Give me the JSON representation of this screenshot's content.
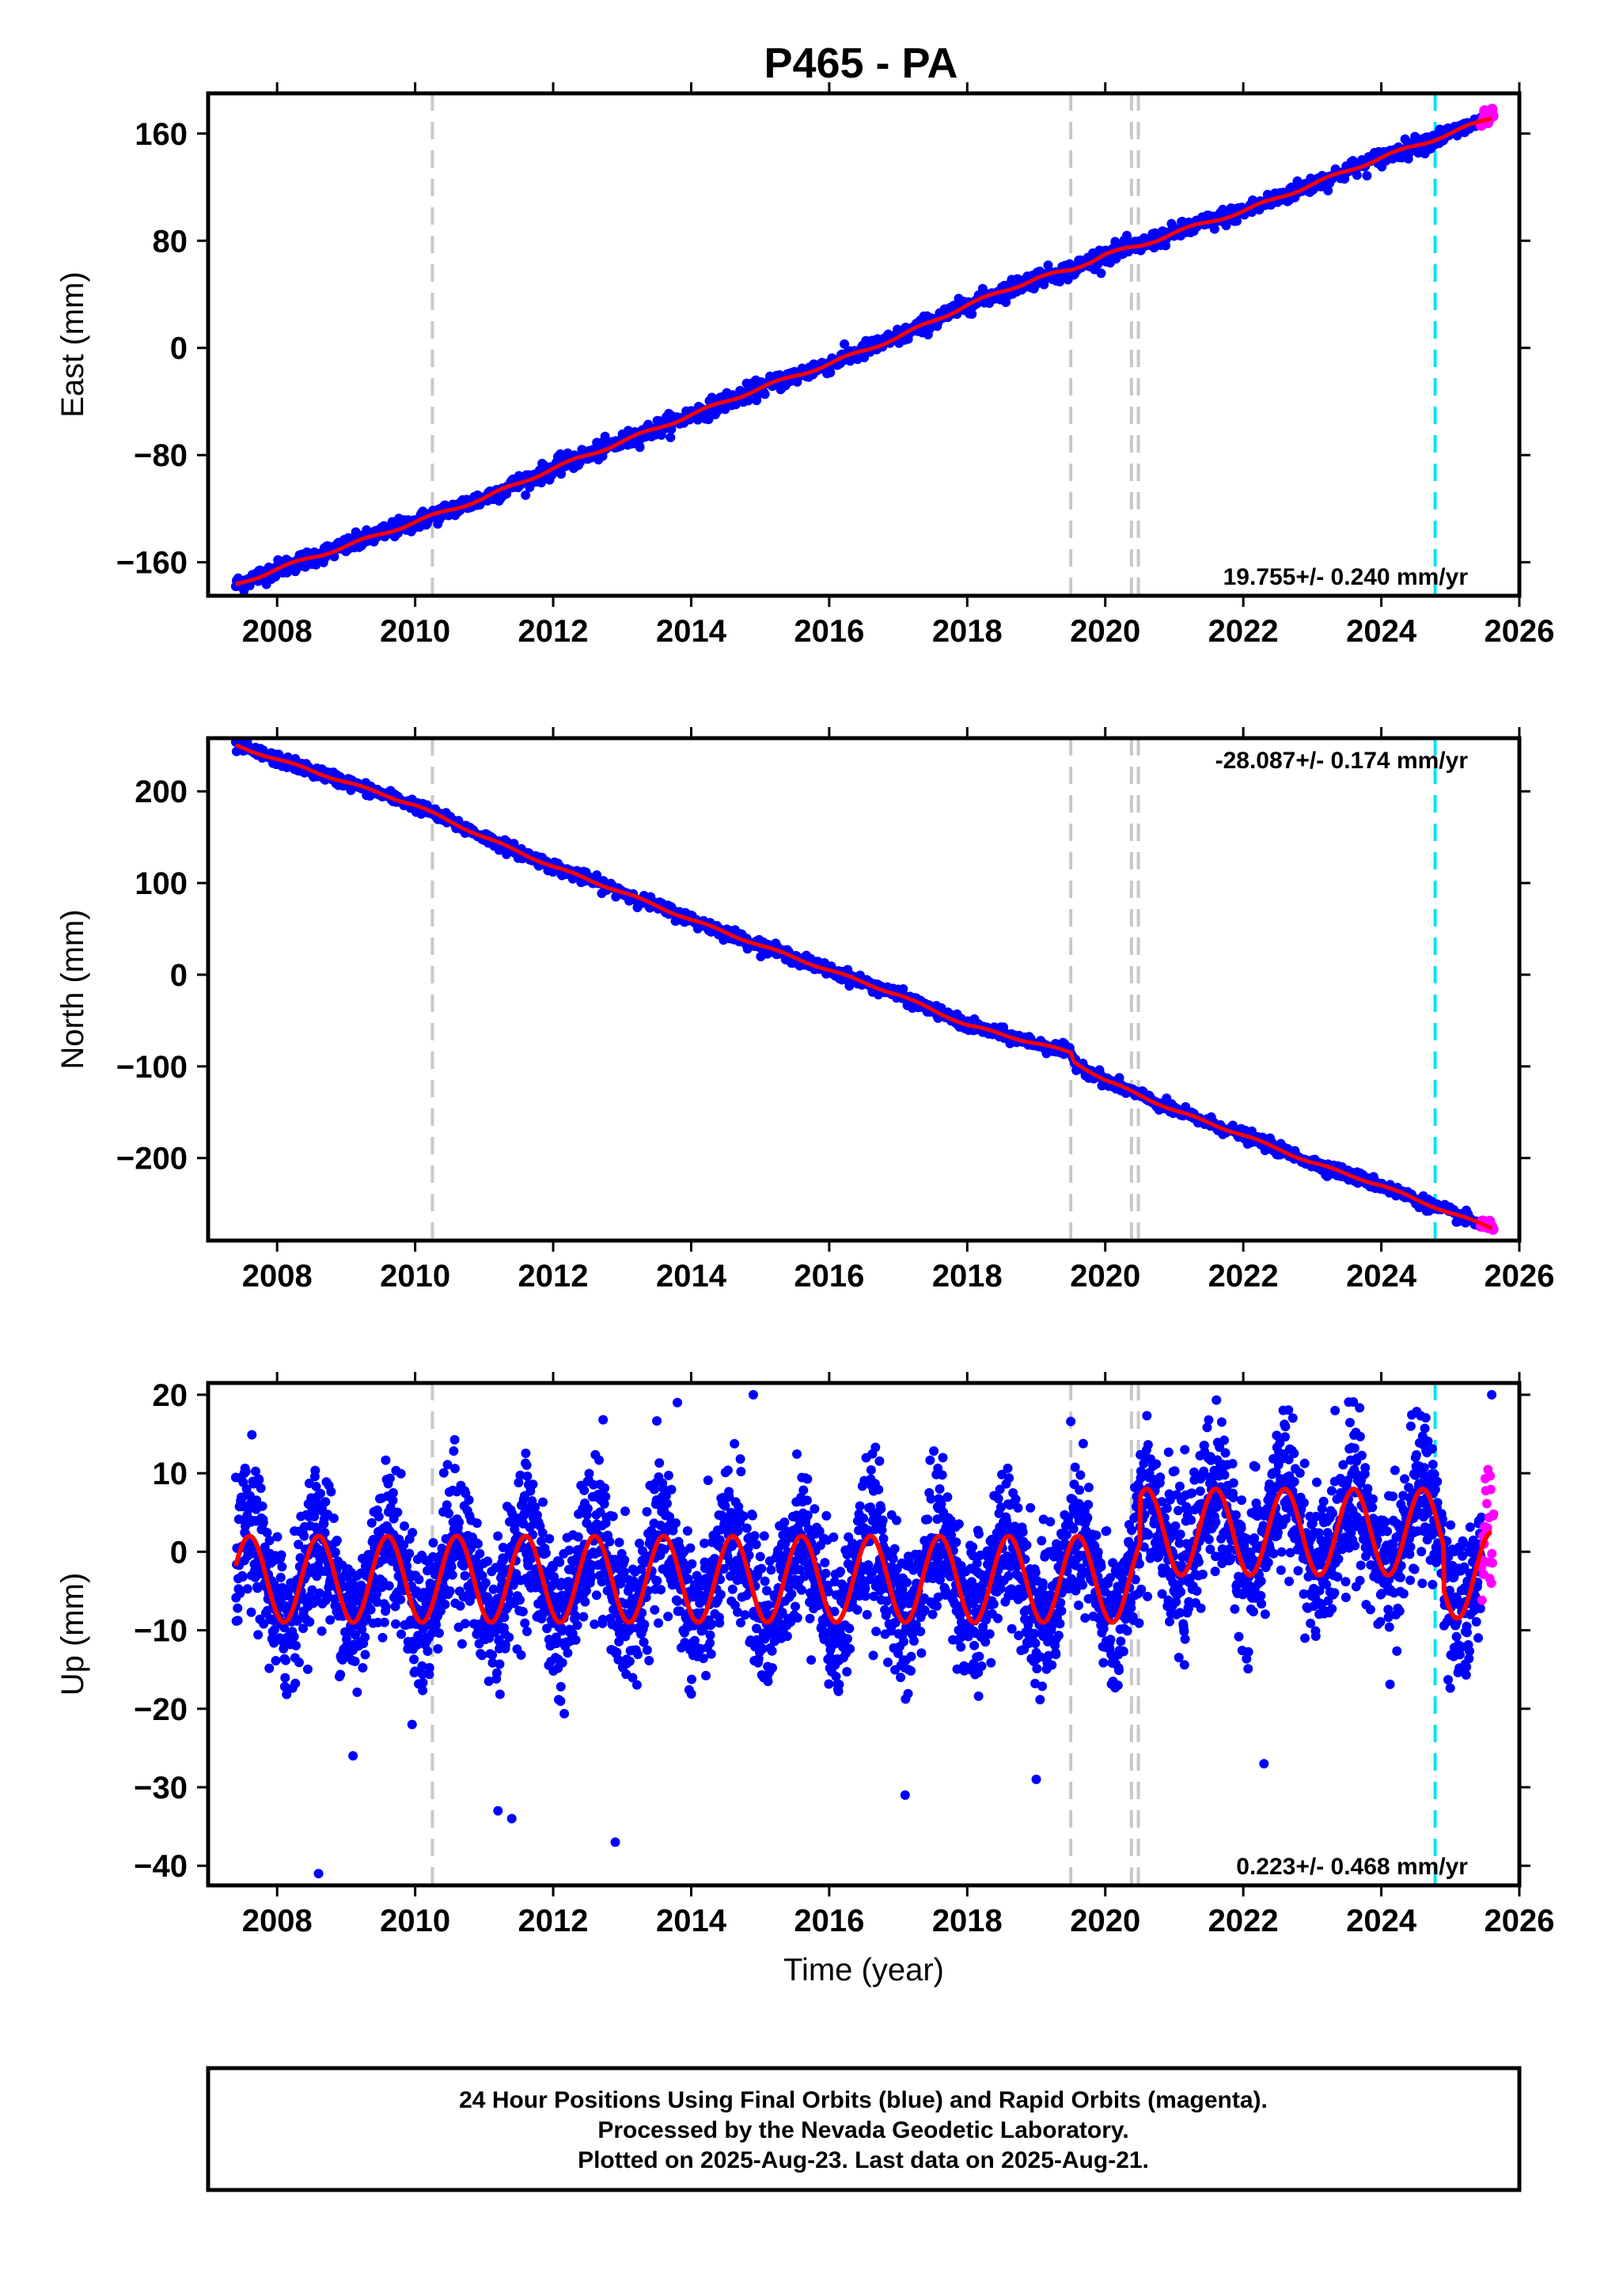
{
  "title": "P465 - PA",
  "colors": {
    "final_orbits": "#0000ff",
    "rapid_orbits": "#ff00ff",
    "model_fit": "#ff0000",
    "equipment_change": "#c8c8c8",
    "earthquake": "#00e5ee"
  },
  "vertical_event_lines": {
    "gray": [
      2010.25,
      2019.5,
      2020.38,
      2020.48
    ],
    "cyan": [
      2024.78
    ]
  },
  "caption": {
    "line1": "24 Hour Positions Using Final Orbits (blue) and Rapid Orbits (magenta).",
    "line2": "Processed by the Nevada Geodetic Laboratory.",
    "line3": "Plotted on 2025-Aug-23. Last data on 2025-Aug-21."
  },
  "chart_data": [
    {
      "type": "scatter",
      "name": "east",
      "ylabel": "East (mm)",
      "xlabel": "",
      "xlim": [
        2007.0,
        2026.0
      ],
      "ylim": [
        -185,
        190
      ],
      "xticks": [
        2008,
        2010,
        2012,
        2014,
        2016,
        2018,
        2020,
        2022,
        2024,
        2026
      ],
      "xtick_labels": [
        "2008",
        "2010",
        "2012",
        "2014",
        "2016",
        "2018",
        "2020",
        "2022",
        "2024",
        "2026"
      ],
      "yticks": [
        160,
        80,
        0,
        -80,
        -160
      ],
      "ytick_labels": [
        "160",
        "80",
        "0",
        "−80",
        "−160"
      ],
      "rate": "19.755+/- 0.240 mm/yr",
      "rate_position": "bottom-right",
      "grid": false,
      "trend": {
        "start": [
          2007.4,
          -177
        ],
        "end": [
          2025.6,
          172
        ]
      },
      "fit_x": [
        2007.4,
        2008.0,
        2009.0,
        2010.0,
        2011.0,
        2012.0,
        2013.0,
        2014.0,
        2015.0,
        2016.0,
        2017.0,
        2018.0,
        2019.0,
        2019.5,
        2020.0,
        2020.5,
        2021.0,
        2022.0,
        2023.0,
        2024.0,
        2025.0,
        2025.6
      ],
      "fit_y": [
        -177,
        -165,
        -148,
        -130,
        -112,
        -90,
        -70,
        -50,
        -30,
        -12,
        8,
        32,
        52,
        58,
        70,
        76,
        86,
        102,
        122,
        142,
        160,
        172
      ]
    },
    {
      "type": "scatter",
      "name": "north",
      "ylabel": "North (mm)",
      "xlabel": "",
      "xlim": [
        2007.0,
        2026.0
      ],
      "ylim": [
        -290,
        258
      ],
      "xticks": [
        2008,
        2010,
        2012,
        2014,
        2016,
        2018,
        2020,
        2022,
        2024,
        2026
      ],
      "xtick_labels": [
        "2008",
        "2010",
        "2012",
        "2014",
        "2016",
        "2018",
        "2020",
        "2022",
        "2024",
        "2026"
      ],
      "yticks": [
        200,
        100,
        0,
        -100,
        -200
      ],
      "ytick_labels": [
        "200",
        "100",
        "0",
        "−100",
        "−200"
      ],
      "rate": "-28.087+/- 0.174 mm/yr",
      "rate_position": "top-right",
      "grid": false,
      "fit_x": [
        2007.4,
        2008.0,
        2009.0,
        2010.0,
        2011.0,
        2012.0,
        2013.0,
        2014.0,
        2015.0,
        2016.0,
        2017.0,
        2018.0,
        2019.0,
        2019.5,
        2019.55,
        2020.0,
        2021.0,
        2022.0,
        2023.0,
        2024.0,
        2025.0,
        2025.6
      ],
      "fit_y": [
        250,
        235,
        210,
        185,
        150,
        118,
        90,
        60,
        32,
        5,
        -22,
        -55,
        -75,
        -85,
        -95,
        -115,
        -148,
        -175,
        -205,
        -230,
        -260,
        -276
      ]
    },
    {
      "type": "scatter",
      "name": "up",
      "ylabel": "Up (mm)",
      "xlabel": "Time (year)",
      "xlim": [
        2007.0,
        2026.0
      ],
      "ylim": [
        -42.5,
        21.5
      ],
      "xticks": [
        2008,
        2010,
        2012,
        2014,
        2016,
        2018,
        2020,
        2022,
        2024,
        2026
      ],
      "xtick_labels": [
        "2008",
        "2010",
        "2012",
        "2014",
        "2016",
        "2018",
        "2020",
        "2022",
        "2024",
        "2026"
      ],
      "yticks": [
        20,
        10,
        0,
        -10,
        -20,
        -30,
        -40
      ],
      "ytick_labels": [
        "20",
        "10",
        "0",
        "−10",
        "−20",
        "−30",
        "−40"
      ],
      "rate": "0.223+/- 0.468 mm/yr",
      "rate_position": "bottom-right",
      "grid": false,
      "seasonal": {
        "amplitude": 5.5,
        "period_years": 1.0,
        "offset_before_2020_5": -3.5,
        "offset_after_2020_5": 2.5,
        "offset_after_2024_9": -3.0
      },
      "outliers_x": [
        2008.6,
        2009.1,
        2011.2,
        2011.4,
        2012.9,
        2013.8,
        2014.9,
        2017.1,
        2019.0,
        2022.3,
        2025.6
      ],
      "outliers_y": [
        -41,
        -26,
        -33,
        -34,
        -37,
        19,
        20,
        -31,
        -29,
        -27,
        20
      ]
    }
  ]
}
